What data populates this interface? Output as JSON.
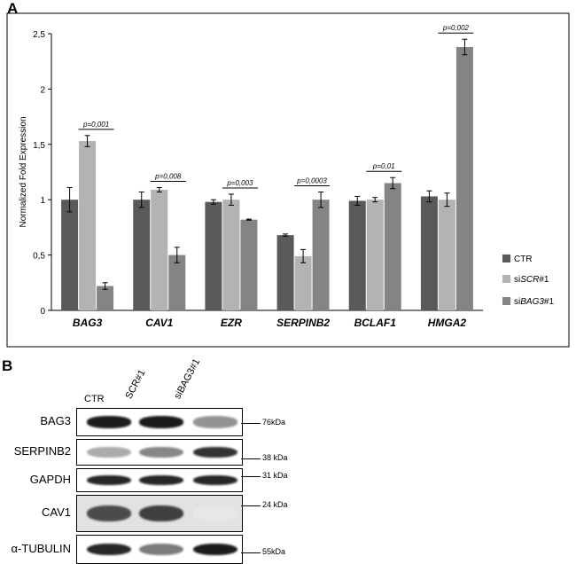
{
  "panel_a_label": "A",
  "panel_b_label": "B",
  "chart_data": {
    "type": "bar",
    "categories": [
      "BAG3",
      "CAV1",
      "EZR",
      "SERPINB2",
      "BCLAF1",
      "HMGA2"
    ],
    "series": [
      {
        "name": "CTR",
        "legend_prefix": "CTR",
        "legend_italic": "",
        "legend_suffix": "",
        "color": "#595959",
        "values": [
          1.0,
          1.0,
          0.98,
          0.68,
          0.99,
          1.03
        ],
        "errors": [
          0.11,
          0.07,
          0.02,
          0.01,
          0.04,
          0.05
        ]
      },
      {
        "name": "siSCR#1",
        "legend_prefix": "si",
        "legend_italic": "SCR",
        "legend_suffix": "#1",
        "color": "#b3b3b3",
        "values": [
          1.53,
          1.09,
          1.0,
          0.49,
          1.0,
          1.0
        ],
        "errors": [
          0.05,
          0.02,
          0.05,
          0.06,
          0.02,
          0.06
        ]
      },
      {
        "name": "siBAG3#1",
        "legend_prefix": "si",
        "legend_italic": "BAG3",
        "legend_suffix": "#1",
        "color": "#848484",
        "values": [
          0.22,
          0.5,
          0.82,
          1.0,
          1.15,
          2.38
        ],
        "errors": [
          0.03,
          0.07,
          0.005,
          0.07,
          0.05,
          0.07
        ]
      }
    ],
    "pvalues": [
      "p=0,001",
      "p=0,008",
      "p=0,003",
      "p=0,0003",
      "p=0,01",
      "p=0,002"
    ],
    "ylabel": "Normalized Fold Expression",
    "ylim": [
      0,
      2.5
    ],
    "yticks": [
      "0",
      "0,5",
      "1",
      "1,5",
      "2",
      "2,5"
    ],
    "legend_position": "right"
  },
  "blot": {
    "lanes": [
      "CTR",
      "SCR#1",
      "siBAG3#1"
    ],
    "rows": [
      {
        "label": "BAG3",
        "marker": "76kDa",
        "intensity": [
          0.95,
          0.95,
          0.45
        ]
      },
      {
        "label": "SERPINB2",
        "marker": "38 kDa",
        "intensity": [
          0.35,
          0.5,
          0.85
        ]
      },
      {
        "label": "GAPDH",
        "marker": "31 kDa",
        "intensity": [
          0.9,
          0.9,
          0.9
        ]
      },
      {
        "label": "CAV1",
        "marker": "24 kDa",
        "intensity": [
          0.75,
          0.8,
          0.1
        ]
      },
      {
        "label": "α-TUBULIN",
        "marker": "55kDa",
        "intensity": [
          0.9,
          0.55,
          0.95
        ]
      }
    ]
  }
}
